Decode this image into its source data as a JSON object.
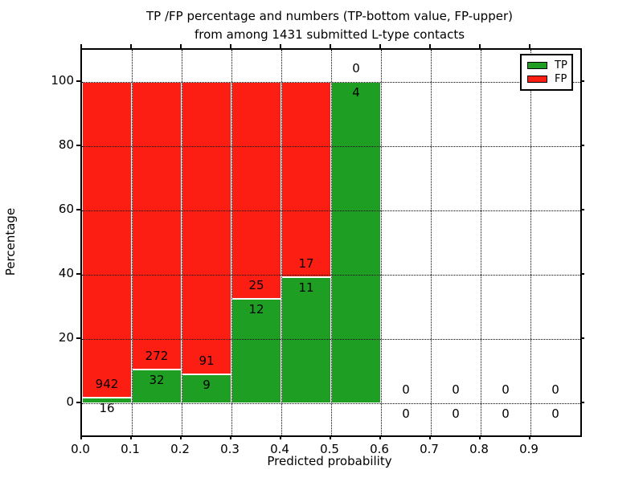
{
  "figure": {
    "title_line1": "TP /FP percentage and numbers (TP-bottom value, FP-upper)",
    "title_line2": "from among 1431 submitted L-type contacts",
    "xlabel": "Predicted probability",
    "ylabel": "Percentage"
  },
  "legend": {
    "items": [
      {
        "label": "TP",
        "color": "#1e9e22"
      },
      {
        "label": "FP",
        "color": "#fc1d13"
      }
    ]
  },
  "chart_data": {
    "type": "bar",
    "stacked": true,
    "title": "TP /FP percentage and numbers (TP-bottom value, FP-upper) from among 1431 submitted L-type contacts",
    "total_contacts": 1431,
    "xlabel": "Predicted probability",
    "ylabel": "Percentage",
    "x_tick_labels": [
      "0.0",
      "0.1",
      "0.2",
      "0.3",
      "0.4",
      "0.5",
      "0.6",
      "0.7",
      "0.8",
      "0.9"
    ],
    "y_ticks": [
      0,
      20,
      40,
      60,
      80,
      100
    ],
    "xlim": [
      0.0,
      1.0
    ],
    "ylim": [
      -10,
      110
    ],
    "grid": "dotted",
    "legend_position": "upper-right",
    "series": [
      {
        "name": "TP",
        "color": "#1e9e22"
      },
      {
        "name": "FP",
        "color": "#fc1d13"
      }
    ],
    "bins": [
      {
        "x_start": 0.0,
        "x_end": 0.1,
        "tp": 16,
        "fp": 942,
        "tp_pct": 1.67,
        "fp_pct": 98.33
      },
      {
        "x_start": 0.1,
        "x_end": 0.2,
        "tp": 32,
        "fp": 272,
        "tp_pct": 10.53,
        "fp_pct": 89.47
      },
      {
        "x_start": 0.2,
        "x_end": 0.3,
        "tp": 9,
        "fp": 91,
        "tp_pct": 9.0,
        "fp_pct": 91.0
      },
      {
        "x_start": 0.3,
        "x_end": 0.4,
        "tp": 12,
        "fp": 25,
        "tp_pct": 32.43,
        "fp_pct": 67.57
      },
      {
        "x_start": 0.4,
        "x_end": 0.5,
        "tp": 11,
        "fp": 17,
        "tp_pct": 39.29,
        "fp_pct": 60.71
      },
      {
        "x_start": 0.5,
        "x_end": 0.6,
        "tp": 4,
        "fp": 0,
        "tp_pct": 100.0,
        "fp_pct": 0.0
      },
      {
        "x_start": 0.6,
        "x_end": 0.7,
        "tp": 0,
        "fp": 0,
        "tp_pct": 0.0,
        "fp_pct": 0.0
      },
      {
        "x_start": 0.7,
        "x_end": 0.8,
        "tp": 0,
        "fp": 0,
        "tp_pct": 0.0,
        "fp_pct": 0.0
      },
      {
        "x_start": 0.8,
        "x_end": 0.9,
        "tp": 0,
        "fp": 0,
        "tp_pct": 0.0,
        "fp_pct": 0.0
      },
      {
        "x_start": 0.9,
        "x_end": 1.0,
        "tp": 0,
        "fp": 0,
        "tp_pct": 0.0,
        "fp_pct": 0.0
      }
    ]
  }
}
